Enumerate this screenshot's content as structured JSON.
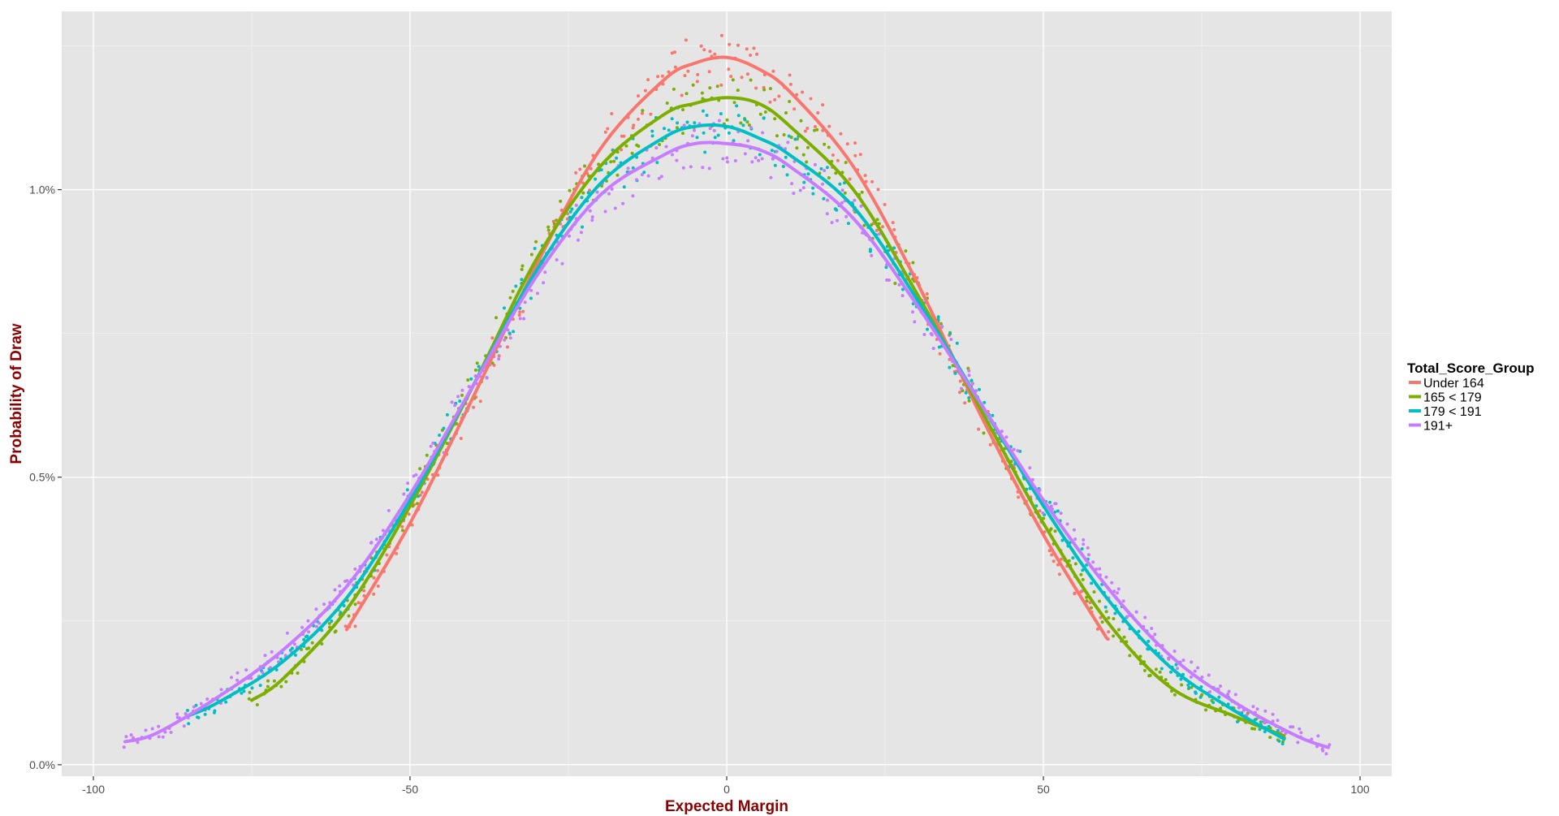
{
  "chart_data": {
    "type": "scatter",
    "title": "",
    "xlabel": "Expected Margin",
    "ylabel": "Probability of Draw",
    "xlim": [
      -105,
      105
    ],
    "ylim": [
      -0.0002,
      0.0131
    ],
    "x_ticks": [
      -100,
      -50,
      0,
      50,
      100
    ],
    "x_tick_labels": [
      "-100",
      "-50",
      "0",
      "50",
      "100"
    ],
    "y_ticks": [
      0,
      0.005,
      0.01
    ],
    "y_tick_labels": [
      "0.0%",
      "0.5%",
      "1.0%"
    ],
    "grid": true,
    "legend_position": "right",
    "legend_title": "Total_Score_Group",
    "series": [
      {
        "name": "Under 164",
        "color": "#F8766D",
        "x": [
          -60,
          -50,
          -40,
          -30,
          -20,
          -10,
          -5,
          0,
          5,
          10,
          20,
          30,
          40,
          50,
          60
        ],
        "y": [
          0.00235,
          0.0042,
          0.0064,
          0.0087,
          0.0107,
          0.0119,
          0.0122,
          0.0123,
          0.0121,
          0.0117,
          0.0104,
          0.0084,
          0.0061,
          0.004,
          0.0022
        ]
      },
      {
        "name": "165 < 179",
        "color": "#7CAE00",
        "x": [
          -75,
          -70,
          -60,
          -50,
          -40,
          -30,
          -20,
          -10,
          -5,
          0,
          5,
          10,
          20,
          30,
          40,
          50,
          60,
          70,
          80,
          88
        ],
        "y": [
          0.00112,
          0.0015,
          0.0027,
          0.0045,
          0.0066,
          0.0088,
          0.0104,
          0.0113,
          0.0115,
          0.0116,
          0.0115,
          0.0111,
          0.01,
          0.0082,
          0.0062,
          0.0042,
          0.0025,
          0.00135,
          0.00085,
          0.0005
        ]
      },
      {
        "name": "179 < 191",
        "color": "#00BFC4",
        "x": [
          -85,
          -80,
          -70,
          -60,
          -50,
          -40,
          -30,
          -20,
          -10,
          -5,
          0,
          5,
          10,
          20,
          30,
          40,
          50,
          60,
          70,
          80,
          88
        ],
        "y": [
          0.00085,
          0.0011,
          0.0018,
          0.0029,
          0.0046,
          0.0066,
          0.0086,
          0.0101,
          0.0109,
          0.0111,
          0.0111,
          0.0109,
          0.0106,
          0.0097,
          0.0081,
          0.0063,
          0.0045,
          0.0029,
          0.0017,
          0.00095,
          0.00045
        ]
      },
      {
        "name": "191+",
        "color": "#C77CFF",
        "x": [
          -95,
          -90,
          -80,
          -70,
          -60,
          -50,
          -40,
          -30,
          -20,
          -10,
          -5,
          0,
          5,
          10,
          20,
          30,
          40,
          50,
          60,
          70,
          80,
          90,
          95
        ],
        "y": [
          0.0004,
          0.00055,
          0.0012,
          0.002,
          0.0031,
          0.0047,
          0.0066,
          0.0085,
          0.0099,
          0.0106,
          0.0108,
          0.0108,
          0.0107,
          0.0104,
          0.0095,
          0.008,
          0.0063,
          0.0046,
          0.0031,
          0.0019,
          0.0011,
          0.0005,
          0.0003
        ]
      }
    ]
  }
}
